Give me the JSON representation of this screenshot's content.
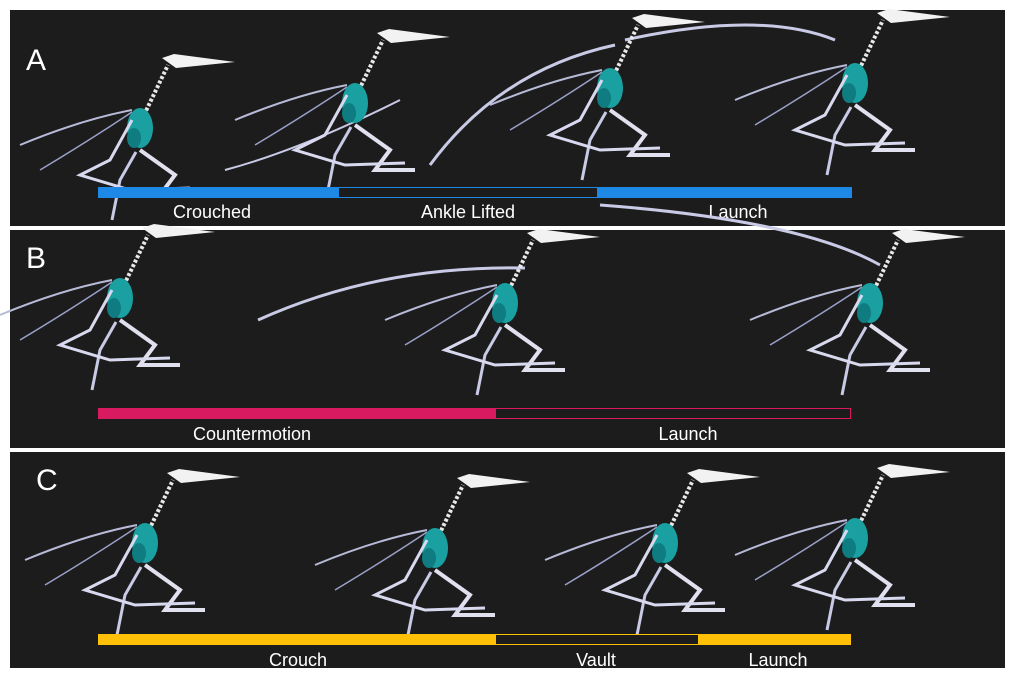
{
  "panels": [
    {
      "label": "A",
      "phases": [
        "Crouched",
        "Ankle Lifted",
        "Launch"
      ]
    },
    {
      "label": "B",
      "phases": [
        "Countermotion",
        "Launch"
      ]
    },
    {
      "label": "C",
      "phases": [
        "Crouch",
        "Vault",
        "Launch"
      ]
    }
  ]
}
